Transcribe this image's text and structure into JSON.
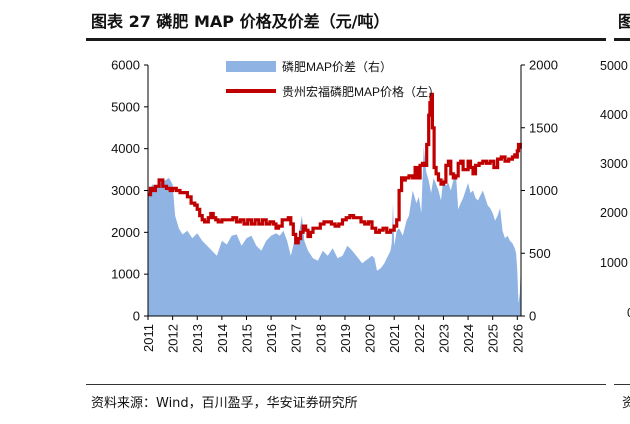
{
  "title": "图表 27 磷肥 MAP 价格及价差（元/吨）",
  "next_title_fragment": "图",
  "source": "资料来源：Wind，百川盈孚，华安证券研究所",
  "next_source_fragment": "资",
  "colors": {
    "price_line": "#c00000",
    "spread_area": "#8fb3e3",
    "axis": "#000000"
  },
  "chart_data": {
    "type": "area+line",
    "title": "",
    "x_tick_labels": [
      "2011",
      "2012",
      "2013",
      "2014",
      "2015",
      "2016",
      "2017",
      "2018",
      "2019",
      "2020",
      "2021",
      "2022",
      "2023",
      "2024",
      "2025",
      "2026"
    ],
    "left_axis": {
      "ylim": [
        0,
        6000
      ],
      "ticks": [
        "0",
        "1000",
        "2000",
        "3000",
        "4000",
        "5000",
        "6000"
      ]
    },
    "right_axis": {
      "ylim": [
        0,
        2000
      ],
      "ticks": [
        "0",
        "500",
        "1000",
        "1500",
        "2000"
      ]
    },
    "legend": [
      "磷肥MAP价差（右）",
      "贵州宏福磷肥MAP价格（左）"
    ],
    "series": [
      {
        "name": "磷肥MAP价差（右）",
        "axis": "right",
        "style": "area",
        "x": [
          2011.0,
          2011.2,
          2011.4,
          2011.55,
          2011.7,
          2011.85,
          2012.0,
          2012.1,
          2012.25,
          2012.4,
          2012.6,
          2012.8,
          2013.0,
          2013.2,
          2013.4,
          2013.6,
          2013.8,
          2014.0,
          2014.2,
          2014.4,
          2014.6,
          2014.8,
          2015.0,
          2015.2,
          2015.4,
          2015.6,
          2015.8,
          2016.0,
          2016.2,
          2016.35,
          2016.5,
          2016.65,
          2016.8,
          2016.95,
          2017.1,
          2017.25,
          2017.35,
          2017.5,
          2017.7,
          2017.9,
          2018.1,
          2018.3,
          2018.5,
          2018.7,
          2018.9,
          2019.1,
          2019.3,
          2019.5,
          2019.7,
          2019.9,
          2020.1,
          2020.2,
          2020.3,
          2020.45,
          2020.6,
          2020.75,
          2020.85,
          2020.9,
          2020.95,
          2021.0,
          2021.1,
          2021.2,
          2021.35,
          2021.5,
          2021.6,
          2021.75,
          2021.9,
          2022.0,
          2022.1,
          2022.2,
          2022.3,
          2022.4,
          2022.5,
          2022.6,
          2022.7,
          2022.8,
          2022.9,
          2023.0,
          2023.1,
          2023.2,
          2023.3,
          2023.4,
          2023.5,
          2023.6,
          2023.7,
          2023.8,
          2023.9,
          2024.0,
          2024.1,
          2024.2,
          2024.3,
          2024.4,
          2024.5,
          2024.6,
          2024.7,
          2024.8,
          2024.9,
          2025.0,
          2025.1,
          2025.2,
          2025.3,
          2025.4,
          2025.5,
          2025.6,
          2025.7,
          2025.8,
          2025.9,
          2025.95,
          2026.0,
          2026.05,
          2026.1,
          2026.15
        ],
        "values": [
          1000,
          1050,
          1020,
          1070,
          1080,
          1100,
          1050,
          800,
          700,
          650,
          680,
          620,
          660,
          600,
          560,
          520,
          480,
          600,
          570,
          640,
          650,
          560,
          620,
          640,
          560,
          520,
          600,
          640,
          660,
          640,
          680,
          600,
          480,
          600,
          620,
          800,
          600,
          520,
          460,
          440,
          520,
          480,
          540,
          460,
          480,
          560,
          520,
          470,
          420,
          450,
          480,
          460,
          360,
          380,
          420,
          480,
          520,
          580,
          900,
          560,
          680,
          700,
          640,
          760,
          800,
          1000,
          900,
          950,
          820,
          1350,
          1150,
          1080,
          980,
          1100,
          1050,
          1000,
          920,
          1100,
          1040,
          1060,
          1000,
          1080,
          1150,
          850,
          900,
          940,
          1000,
          1060,
          980,
          1000,
          940,
          920,
          960,
          1000,
          940,
          880,
          860,
          820,
          760,
          800,
          860,
          680,
          620,
          640,
          600,
          580,
          540,
          500,
          360,
          100,
          180,
          420
        ]
      },
      {
        "name": "贵州宏福磷肥MAP价格（左）",
        "axis": "left",
        "style": "line",
        "x": [
          2011.0,
          2011.1,
          2011.2,
          2011.3,
          2011.45,
          2011.6,
          2011.75,
          2011.9,
          2012.0,
          2012.15,
          2012.3,
          2012.45,
          2012.6,
          2012.75,
          2012.9,
          2013.0,
          2013.1,
          2013.2,
          2013.3,
          2013.45,
          2013.55,
          2013.65,
          2013.75,
          2013.85,
          2014.0,
          2014.15,
          2014.3,
          2014.45,
          2014.6,
          2014.75,
          2014.9,
          2015.05,
          2015.2,
          2015.35,
          2015.5,
          2015.65,
          2015.8,
          2015.95,
          2016.1,
          2016.2,
          2016.3,
          2016.45,
          2016.6,
          2016.7,
          2016.8,
          2016.9,
          2017.0,
          2017.1,
          2017.2,
          2017.3,
          2017.4,
          2017.5,
          2017.6,
          2017.7,
          2017.85,
          2018.0,
          2018.15,
          2018.3,
          2018.45,
          2018.6,
          2018.75,
          2018.9,
          2019.05,
          2019.2,
          2019.35,
          2019.5,
          2019.65,
          2019.8,
          2019.95,
          2020.1,
          2020.25,
          2020.4,
          2020.55,
          2020.7,
          2020.85,
          2021.0,
          2021.1,
          2021.2,
          2021.3,
          2021.35,
          2021.45,
          2021.6,
          2021.75,
          2021.85,
          2021.95,
          2022.05,
          2022.15,
          2022.25,
          2022.32,
          2022.4,
          2022.45,
          2022.5,
          2022.55,
          2022.62,
          2022.7,
          2022.8,
          2022.9,
          2023.0,
          2023.1,
          2023.2,
          2023.3,
          2023.4,
          2023.5,
          2023.6,
          2023.7,
          2023.8,
          2023.9,
          2024.0,
          2024.1,
          2024.2,
          2024.3,
          2024.45,
          2024.6,
          2024.75,
          2024.9,
          2025.05,
          2025.2,
          2025.35,
          2025.5,
          2025.65,
          2025.8,
          2025.9,
          2025.95,
          2026.0,
          2026.05,
          2026.12
        ],
        "values": [
          2900,
          3050,
          3000,
          3100,
          3250,
          3100,
          3050,
          3000,
          3050,
          3000,
          2950,
          2950,
          2850,
          2700,
          2650,
          2550,
          2400,
          2300,
          2250,
          2350,
          2450,
          2350,
          2300,
          2250,
          2300,
          2300,
          2300,
          2350,
          2250,
          2300,
          2200,
          2300,
          2200,
          2300,
          2200,
          2300,
          2200,
          2250,
          2200,
          2100,
          2150,
          2300,
          2300,
          2350,
          2200,
          1950,
          1750,
          1850,
          2000,
          2150,
          2050,
          1900,
          2000,
          2100,
          2100,
          2200,
          2250,
          2250,
          2200,
          2150,
          2200,
          2300,
          2350,
          2400,
          2350,
          2350,
          2250,
          2200,
          2250,
          2100,
          2000,
          2050,
          2100,
          2000,
          2050,
          2150,
          2300,
          3000,
          3300,
          3250,
          3300,
          3350,
          3300,
          3550,
          3300,
          3600,
          3650,
          3600,
          4100,
          4800,
          5100,
          5300,
          4500,
          3550,
          3400,
          3250,
          3150,
          3200,
          3600,
          3700,
          3400,
          3300,
          3350,
          3650,
          3700,
          3500,
          3500,
          3700,
          3550,
          3400,
          3600,
          3650,
          3700,
          3650,
          3700,
          3550,
          3750,
          3800,
          3700,
          3750,
          3800,
          3850,
          3800,
          3950,
          4100,
          4000
        ]
      }
    ]
  }
}
